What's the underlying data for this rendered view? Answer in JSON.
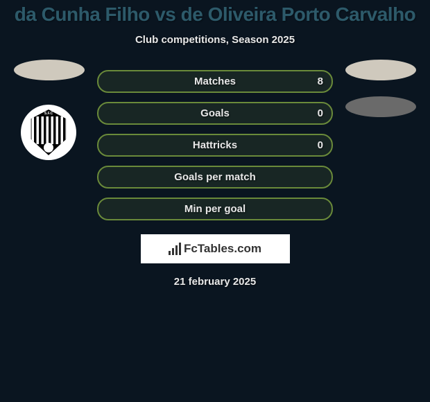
{
  "header": {
    "title": "da Cunha Filho vs de Oliveira Porto Carvalho",
    "subtitle": "Club competitions, Season 2025"
  },
  "theme": {
    "background": "#0a1520",
    "title_color": "#2d5a6a",
    "text_color": "#e8e8e8",
    "bar_border": "#6a8a3a",
    "bar_fill": "rgba(106,138,58,0.15)",
    "ellipse_light": "#cfc9bd",
    "ellipse_dark": "#6a6a6a",
    "badge_bg": "#ffffff",
    "badge_shield": "#000000"
  },
  "stats": [
    {
      "label": "Matches",
      "value": "8"
    },
    {
      "label": "Goals",
      "value": "0"
    },
    {
      "label": "Hattricks",
      "value": "0"
    },
    {
      "label": "Goals per match",
      "value": ""
    },
    {
      "label": "Min per goal",
      "value": ""
    }
  ],
  "club": {
    "initials": "S.F.C"
  },
  "watermark": {
    "text": "FcTables.com"
  },
  "footer": {
    "date": "21 february 2025"
  }
}
